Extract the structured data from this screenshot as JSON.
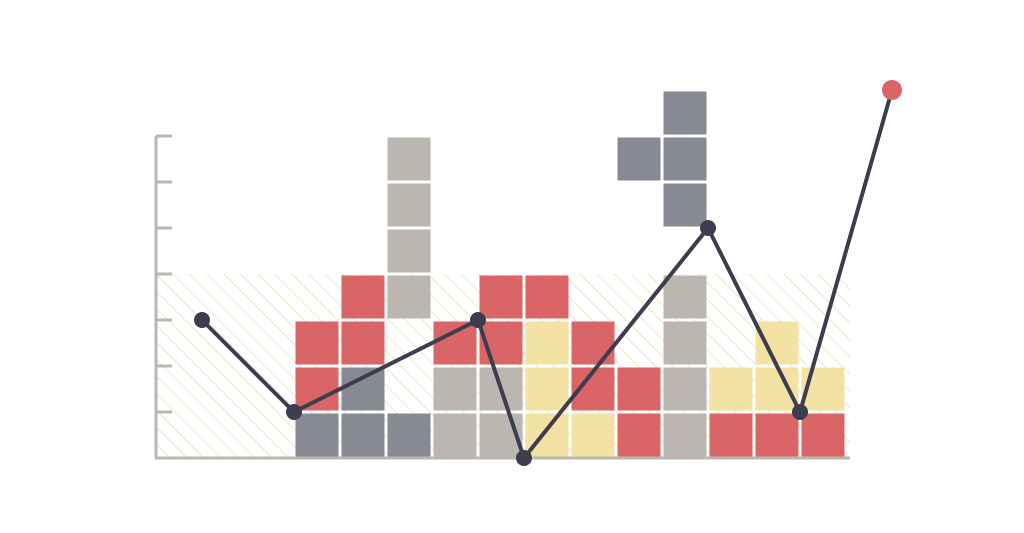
{
  "colors": {
    "red": "#d96566",
    "gray": "#878a93",
    "beige": "#bcb6b0",
    "yellow": "#f3e2a3",
    "line": "#3e3c4f",
    "last_point": "#d96566",
    "axis": "#bcb6b0",
    "band_stripe": "#ece6c6"
  },
  "chart_data": {
    "type": "line",
    "title": "",
    "xlabel": "",
    "ylabel": "",
    "ylim": [
      0,
      7
    ],
    "y_ticks": [
      1,
      2,
      3,
      4,
      5,
      6,
      7
    ],
    "grid": false,
    "legend": "none",
    "shaded_band": {
      "from": 0,
      "to": 4,
      "pattern": "diagonal-hatch"
    },
    "series": [
      {
        "points": [
          {
            "x": 1,
            "y": 3
          },
          {
            "x": 3,
            "y": 1
          },
          {
            "x": 7,
            "y": 3
          },
          {
            "x": 8,
            "y": 0
          },
          {
            "x": 12,
            "y": 5
          },
          {
            "x": 14,
            "y": 1
          },
          {
            "x": 16,
            "y": 8
          }
        ],
        "last_point_highlighted": true
      }
    ],
    "block_columns": [
      {
        "col": 3,
        "cells": [
          "gray",
          "red",
          "red"
        ]
      },
      {
        "col": 4,
        "cells": [
          "gray",
          "gray",
          "red",
          "red"
        ]
      },
      {
        "col": 5,
        "cells": [
          "gray",
          null,
          null,
          "beige",
          "beige",
          "beige",
          "beige"
        ]
      },
      {
        "col": 6,
        "cells": [
          "beige",
          "beige",
          "red"
        ]
      },
      {
        "col": 7,
        "cells": [
          "beige",
          "beige",
          "red",
          "red"
        ]
      },
      {
        "col": 8,
        "cells": [
          "yellow",
          "yellow",
          "yellow",
          "red"
        ]
      },
      {
        "col": 9,
        "cells": [
          "yellow",
          "red",
          "red"
        ]
      },
      {
        "col": 10,
        "cells": [
          "red",
          "red"
        ]
      },
      {
        "col": 11,
        "cells": [
          "beige",
          "beige",
          "beige",
          "beige"
        ]
      },
      {
        "col": 12,
        "cells": [
          "red",
          "yellow"
        ]
      },
      {
        "col": 13,
        "cells": [
          "red",
          "yellow",
          "yellow"
        ]
      },
      {
        "col": 14,
        "cells": [
          "red",
          "yellow"
        ]
      }
    ],
    "floating_blocks": [
      {
        "col": 10,
        "row": 6,
        "color": "gray"
      },
      {
        "col": 11,
        "row": 5,
        "color": "gray"
      },
      {
        "col": 11,
        "row": 6,
        "color": "gray"
      },
      {
        "col": 11,
        "row": 7,
        "color": "gray"
      }
    ]
  }
}
